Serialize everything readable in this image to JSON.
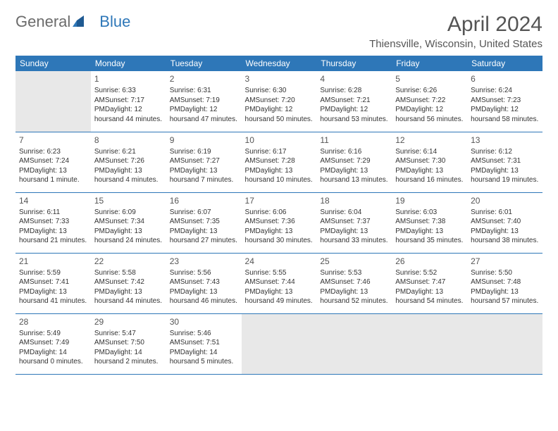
{
  "logo": {
    "text_general": "General",
    "text_blue": "Blue"
  },
  "title": "April 2024",
  "location": "Thiensville, Wisconsin, United States",
  "colors": {
    "header_bg": "#2e77b8",
    "header_fg": "#ffffff",
    "empty_bg": "#e8e8e8",
    "border": "#2e77b8",
    "text": "#333333",
    "title_color": "#555555"
  },
  "weekdays": [
    "Sunday",
    "Monday",
    "Tuesday",
    "Wednesday",
    "Thursday",
    "Friday",
    "Saturday"
  ],
  "weeks": [
    [
      {
        "empty": true
      },
      {
        "day": "1",
        "sunrise": "Sunrise: 6:33 AM",
        "sunset": "Sunset: 7:17 PM",
        "daylight1": "Daylight: 12 hours",
        "daylight2": "and 44 minutes."
      },
      {
        "day": "2",
        "sunrise": "Sunrise: 6:31 AM",
        "sunset": "Sunset: 7:19 PM",
        "daylight1": "Daylight: 12 hours",
        "daylight2": "and 47 minutes."
      },
      {
        "day": "3",
        "sunrise": "Sunrise: 6:30 AM",
        "sunset": "Sunset: 7:20 PM",
        "daylight1": "Daylight: 12 hours",
        "daylight2": "and 50 minutes."
      },
      {
        "day": "4",
        "sunrise": "Sunrise: 6:28 AM",
        "sunset": "Sunset: 7:21 PM",
        "daylight1": "Daylight: 12 hours",
        "daylight2": "and 53 minutes."
      },
      {
        "day": "5",
        "sunrise": "Sunrise: 6:26 AM",
        "sunset": "Sunset: 7:22 PM",
        "daylight1": "Daylight: 12 hours",
        "daylight2": "and 56 minutes."
      },
      {
        "day": "6",
        "sunrise": "Sunrise: 6:24 AM",
        "sunset": "Sunset: 7:23 PM",
        "daylight1": "Daylight: 12 hours",
        "daylight2": "and 58 minutes."
      }
    ],
    [
      {
        "day": "7",
        "sunrise": "Sunrise: 6:23 AM",
        "sunset": "Sunset: 7:24 PM",
        "daylight1": "Daylight: 13 hours",
        "daylight2": "and 1 minute."
      },
      {
        "day": "8",
        "sunrise": "Sunrise: 6:21 AM",
        "sunset": "Sunset: 7:26 PM",
        "daylight1": "Daylight: 13 hours",
        "daylight2": "and 4 minutes."
      },
      {
        "day": "9",
        "sunrise": "Sunrise: 6:19 AM",
        "sunset": "Sunset: 7:27 PM",
        "daylight1": "Daylight: 13 hours",
        "daylight2": "and 7 minutes."
      },
      {
        "day": "10",
        "sunrise": "Sunrise: 6:17 AM",
        "sunset": "Sunset: 7:28 PM",
        "daylight1": "Daylight: 13 hours",
        "daylight2": "and 10 minutes."
      },
      {
        "day": "11",
        "sunrise": "Sunrise: 6:16 AM",
        "sunset": "Sunset: 7:29 PM",
        "daylight1": "Daylight: 13 hours",
        "daylight2": "and 13 minutes."
      },
      {
        "day": "12",
        "sunrise": "Sunrise: 6:14 AM",
        "sunset": "Sunset: 7:30 PM",
        "daylight1": "Daylight: 13 hours",
        "daylight2": "and 16 minutes."
      },
      {
        "day": "13",
        "sunrise": "Sunrise: 6:12 AM",
        "sunset": "Sunset: 7:31 PM",
        "daylight1": "Daylight: 13 hours",
        "daylight2": "and 19 minutes."
      }
    ],
    [
      {
        "day": "14",
        "sunrise": "Sunrise: 6:11 AM",
        "sunset": "Sunset: 7:33 PM",
        "daylight1": "Daylight: 13 hours",
        "daylight2": "and 21 minutes."
      },
      {
        "day": "15",
        "sunrise": "Sunrise: 6:09 AM",
        "sunset": "Sunset: 7:34 PM",
        "daylight1": "Daylight: 13 hours",
        "daylight2": "and 24 minutes."
      },
      {
        "day": "16",
        "sunrise": "Sunrise: 6:07 AM",
        "sunset": "Sunset: 7:35 PM",
        "daylight1": "Daylight: 13 hours",
        "daylight2": "and 27 minutes."
      },
      {
        "day": "17",
        "sunrise": "Sunrise: 6:06 AM",
        "sunset": "Sunset: 7:36 PM",
        "daylight1": "Daylight: 13 hours",
        "daylight2": "and 30 minutes."
      },
      {
        "day": "18",
        "sunrise": "Sunrise: 6:04 AM",
        "sunset": "Sunset: 7:37 PM",
        "daylight1": "Daylight: 13 hours",
        "daylight2": "and 33 minutes."
      },
      {
        "day": "19",
        "sunrise": "Sunrise: 6:03 AM",
        "sunset": "Sunset: 7:38 PM",
        "daylight1": "Daylight: 13 hours",
        "daylight2": "and 35 minutes."
      },
      {
        "day": "20",
        "sunrise": "Sunrise: 6:01 AM",
        "sunset": "Sunset: 7:40 PM",
        "daylight1": "Daylight: 13 hours",
        "daylight2": "and 38 minutes."
      }
    ],
    [
      {
        "day": "21",
        "sunrise": "Sunrise: 5:59 AM",
        "sunset": "Sunset: 7:41 PM",
        "daylight1": "Daylight: 13 hours",
        "daylight2": "and 41 minutes."
      },
      {
        "day": "22",
        "sunrise": "Sunrise: 5:58 AM",
        "sunset": "Sunset: 7:42 PM",
        "daylight1": "Daylight: 13 hours",
        "daylight2": "and 44 minutes."
      },
      {
        "day": "23",
        "sunrise": "Sunrise: 5:56 AM",
        "sunset": "Sunset: 7:43 PM",
        "daylight1": "Daylight: 13 hours",
        "daylight2": "and 46 minutes."
      },
      {
        "day": "24",
        "sunrise": "Sunrise: 5:55 AM",
        "sunset": "Sunset: 7:44 PM",
        "daylight1": "Daylight: 13 hours",
        "daylight2": "and 49 minutes."
      },
      {
        "day": "25",
        "sunrise": "Sunrise: 5:53 AM",
        "sunset": "Sunset: 7:46 PM",
        "daylight1": "Daylight: 13 hours",
        "daylight2": "and 52 minutes."
      },
      {
        "day": "26",
        "sunrise": "Sunrise: 5:52 AM",
        "sunset": "Sunset: 7:47 PM",
        "daylight1": "Daylight: 13 hours",
        "daylight2": "and 54 minutes."
      },
      {
        "day": "27",
        "sunrise": "Sunrise: 5:50 AM",
        "sunset": "Sunset: 7:48 PM",
        "daylight1": "Daylight: 13 hours",
        "daylight2": "and 57 minutes."
      }
    ],
    [
      {
        "day": "28",
        "sunrise": "Sunrise: 5:49 AM",
        "sunset": "Sunset: 7:49 PM",
        "daylight1": "Daylight: 14 hours",
        "daylight2": "and 0 minutes."
      },
      {
        "day": "29",
        "sunrise": "Sunrise: 5:47 AM",
        "sunset": "Sunset: 7:50 PM",
        "daylight1": "Daylight: 14 hours",
        "daylight2": "and 2 minutes."
      },
      {
        "day": "30",
        "sunrise": "Sunrise: 5:46 AM",
        "sunset": "Sunset: 7:51 PM",
        "daylight1": "Daylight: 14 hours",
        "daylight2": "and 5 minutes."
      },
      {
        "empty": true
      },
      {
        "empty": true
      },
      {
        "empty": true
      },
      {
        "empty": true
      }
    ]
  ]
}
